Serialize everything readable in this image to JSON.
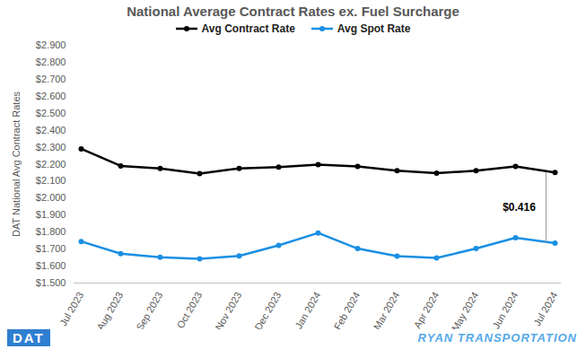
{
  "chart_data": {
    "type": "line",
    "title": "National Average Contract Rates ex. Fuel Surcharge",
    "y_label": "DAT National Avg Contract Rates",
    "categories": [
      "Jul 2023",
      "Aug 2023",
      "Sep 2023",
      "Oct 2023",
      "Nov 2023",
      "Dec 2023",
      "Jan 2024",
      "Feb 2024",
      "Mar 2024",
      "Apr 2024",
      "May 2024",
      "Jun 2024",
      "Jul 2024"
    ],
    "series": [
      {
        "name": "Avg Contract Rate",
        "color": "#000000",
        "marker": "circle",
        "values": [
          2.29,
          2.19,
          2.175,
          2.145,
          2.175,
          2.183,
          2.197,
          2.187,
          2.162,
          2.147,
          2.162,
          2.187,
          2.151
        ]
      },
      {
        "name": "Avg Spot Rate",
        "color": "#1a8fe3",
        "marker": "circle",
        "values": [
          1.745,
          1.673,
          1.652,
          1.642,
          1.66,
          1.722,
          1.795,
          1.703,
          1.658,
          1.648,
          1.703,
          1.767,
          1.735
        ]
      }
    ],
    "ylim": [
      1.5,
      2.9
    ],
    "yticks": [
      {
        "value": 1.5,
        "label": "$1.500"
      },
      {
        "value": 1.6,
        "label": "$1.600"
      },
      {
        "value": 1.7,
        "label": "$1.700"
      },
      {
        "value": 1.8,
        "label": "$1.800"
      },
      {
        "value": 1.9,
        "label": "$1.900"
      },
      {
        "value": 2.0,
        "label": "$2.000"
      },
      {
        "value": 2.1,
        "label": "$2.100"
      },
      {
        "value": 2.2,
        "label": "$2.200"
      },
      {
        "value": 2.3,
        "label": "$2.300"
      },
      {
        "value": 2.4,
        "label": "$2.400"
      },
      {
        "value": 2.5,
        "label": "$2.500"
      },
      {
        "value": 2.6,
        "label": "$2.600"
      },
      {
        "value": 2.7,
        "label": "$2.700"
      },
      {
        "value": 2.8,
        "label": "$2.800"
      },
      {
        "value": 2.9,
        "label": "$2.900"
      }
    ],
    "grid": false,
    "legend": "top",
    "annotations": [
      "$0.416"
    ],
    "footer_texts": [
      "DAT",
      "RYAN TRANSPORTATION"
    ]
  }
}
